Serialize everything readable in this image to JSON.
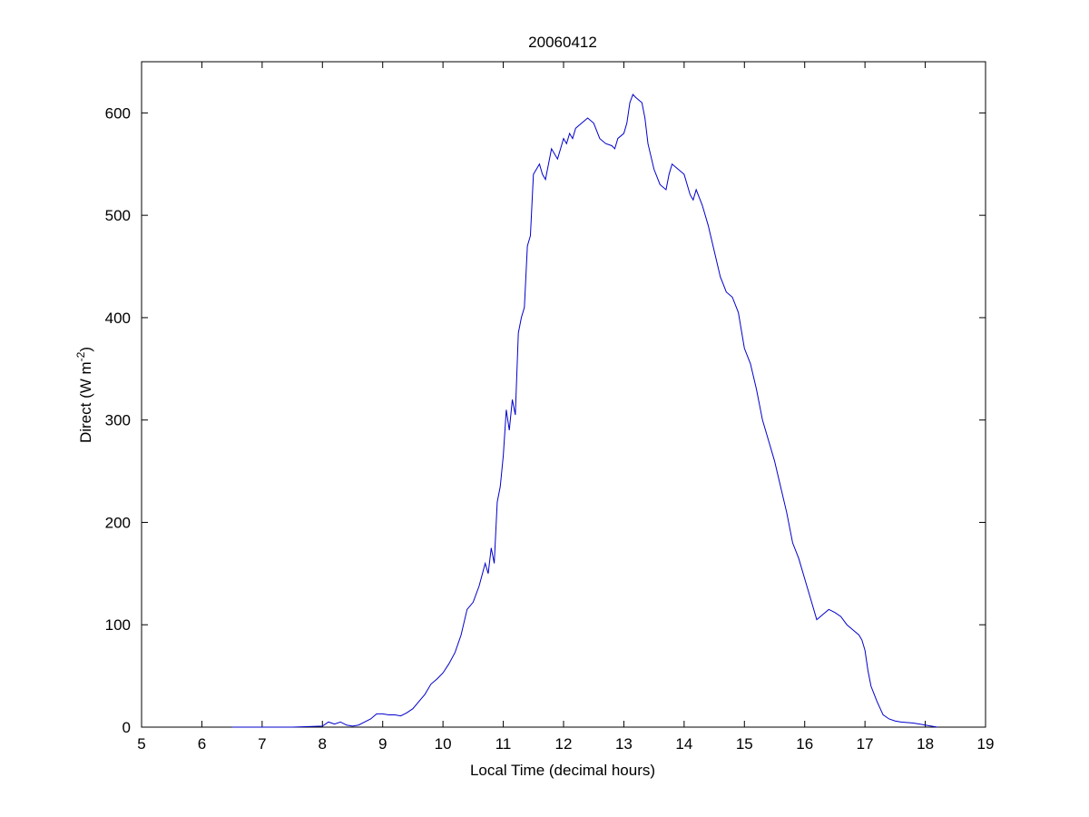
{
  "chart_data": {
    "type": "line",
    "title": "20060412",
    "xlabel": "Local Time (decimal hours)",
    "ylabel": {
      "main": "Direct (W m",
      "superscript": "-2",
      "close": ")"
    },
    "xlim": [
      5,
      19
    ],
    "ylim": [
      0,
      650
    ],
    "xticks": [
      "5",
      "6",
      "7",
      "8",
      "9",
      "10",
      "11",
      "12",
      "13",
      "14",
      "15",
      "16",
      "17",
      "18",
      "19"
    ],
    "yticks": [
      "0",
      "100",
      "200",
      "300",
      "400",
      "500",
      "600"
    ],
    "grid": false,
    "line_color": "#0000cc",
    "series": [
      {
        "x": [
          6.5,
          7.0,
          7.5,
          8.0,
          8.1,
          8.2,
          8.3,
          8.4,
          8.5,
          8.6,
          8.7,
          8.8,
          8.9,
          9.0,
          9.1,
          9.2,
          9.3,
          9.4,
          9.5,
          9.6,
          9.7,
          9.8,
          9.9,
          10.0,
          10.1,
          10.2,
          10.3,
          10.4,
          10.5,
          10.6,
          10.7,
          10.75,
          10.8,
          10.85,
          10.9,
          10.95,
          11.0,
          11.05,
          11.1,
          11.15,
          11.2,
          11.25,
          11.3,
          11.35,
          11.4,
          11.45,
          11.5,
          11.55,
          11.6,
          11.65,
          11.7,
          11.8,
          11.9,
          12.0,
          12.05,
          12.1,
          12.15,
          12.2,
          12.3,
          12.4,
          12.5,
          12.6,
          12.7,
          12.8,
          12.85,
          12.9,
          13.0,
          13.05,
          13.1,
          13.15,
          13.2,
          13.3,
          13.35,
          13.4,
          13.5,
          13.6,
          13.7,
          13.75,
          13.8,
          13.9,
          14.0,
          14.1,
          14.15,
          14.2,
          14.3,
          14.4,
          14.5,
          14.6,
          14.7,
          14.8,
          14.9,
          15.0,
          15.1,
          15.2,
          15.3,
          15.4,
          15.5,
          15.6,
          15.7,
          15.8,
          15.9,
          16.0,
          16.1,
          16.2,
          16.3,
          16.4,
          16.5,
          16.6,
          16.7,
          16.8,
          16.9,
          16.95,
          17.0,
          17.05,
          17.1,
          17.2,
          17.3,
          17.4,
          17.5,
          17.6,
          17.8,
          18.0,
          18.2
        ],
        "y": [
          0,
          0,
          0,
          1,
          5,
          3,
          5,
          2,
          1,
          2,
          5,
          8,
          13,
          13,
          12,
          12,
          11,
          14,
          18,
          25,
          32,
          42,
          47,
          53,
          62,
          73,
          90,
          115,
          122,
          138,
          160,
          150,
          175,
          160,
          220,
          235,
          265,
          310,
          290,
          320,
          305,
          385,
          400,
          410,
          470,
          480,
          540,
          545,
          550,
          540,
          535,
          565,
          555,
          575,
          570,
          580,
          575,
          585,
          590,
          595,
          590,
          575,
          570,
          568,
          565,
          575,
          580,
          590,
          610,
          618,
          615,
          610,
          595,
          570,
          545,
          530,
          525,
          540,
          550,
          545,
          540,
          520,
          515,
          525,
          510,
          490,
          465,
          440,
          425,
          420,
          405,
          370,
          355,
          330,
          300,
          280,
          260,
          235,
          210,
          180,
          165,
          145,
          125,
          105,
          110,
          115,
          112,
          108,
          100,
          95,
          90,
          85,
          75,
          55,
          40,
          25,
          12,
          8,
          6,
          5,
          4,
          2,
          0
        ]
      }
    ]
  }
}
